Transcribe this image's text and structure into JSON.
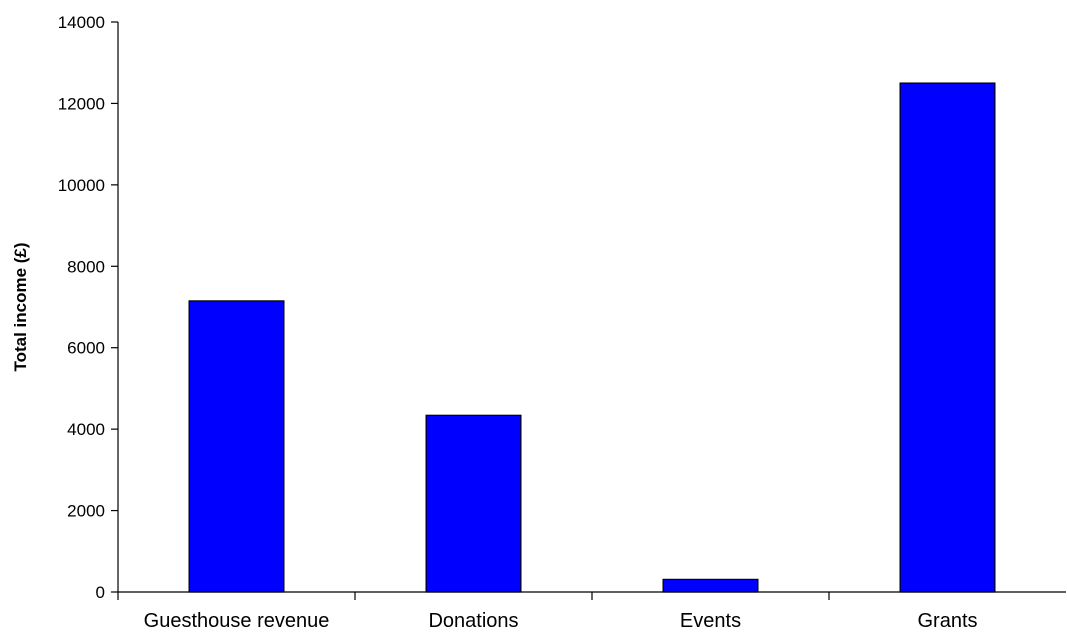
{
  "chart_data": {
    "type": "bar",
    "title": "",
    "xlabel": "",
    "ylabel": "Total income (£)",
    "categories": [
      "Guesthouse revenue",
      "Donations",
      "Events",
      "Grants"
    ],
    "values": [
      7150,
      4340,
      310,
      12500
    ],
    "ylim": [
      0,
      14000
    ],
    "yticks": [
      0,
      2000,
      4000,
      6000,
      8000,
      10000,
      12000,
      14000
    ],
    "grid": false,
    "legend": "none",
    "bar_color": "#0000ff",
    "bar_edge_color": "#000000"
  }
}
